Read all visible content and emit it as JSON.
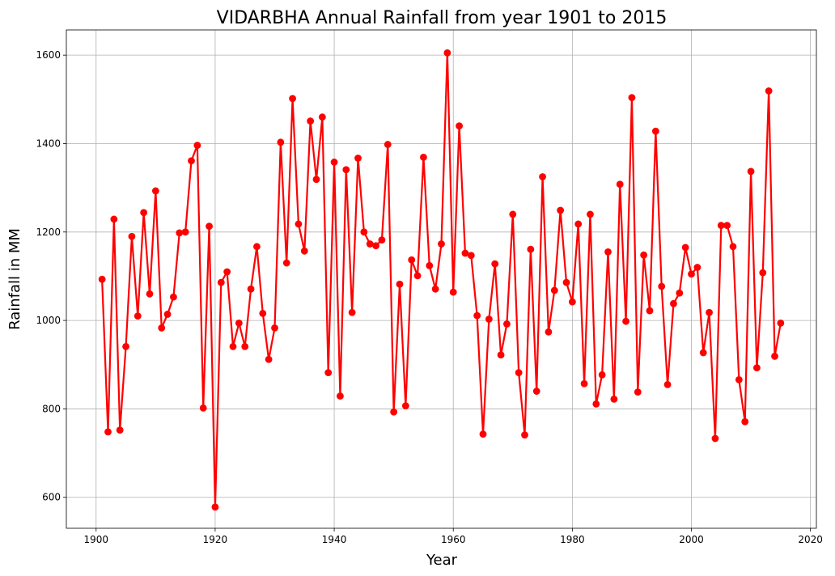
{
  "chart_data": {
    "type": "line",
    "title": "VIDARBHA Annual Rainfall from year 1901 to 2015",
    "xlabel": "Year",
    "ylabel": "Rainfall in MM",
    "xlim": [
      1895,
      2021
    ],
    "ylim": [
      530,
      1657
    ],
    "xticks": [
      1900,
      1920,
      1940,
      1960,
      1980,
      2000,
      2020
    ],
    "yticks": [
      600,
      800,
      1000,
      1200,
      1400,
      1600
    ],
    "grid": true,
    "legend": "none",
    "series": [
      {
        "color": "#ff0000",
        "marker": "circle",
        "x": [
          1901,
          1902,
          1903,
          1904,
          1905,
          1906,
          1907,
          1908,
          1909,
          1910,
          1911,
          1912,
          1913,
          1914,
          1915,
          1916,
          1917,
          1918,
          1919,
          1920,
          1921,
          1922,
          1923,
          1924,
          1925,
          1926,
          1927,
          1928,
          1929,
          1930,
          1931,
          1932,
          1933,
          1934,
          1935,
          1936,
          1937,
          1938,
          1939,
          1940,
          1941,
          1942,
          1943,
          1944,
          1945,
          1946,
          1947,
          1948,
          1949,
          1950,
          1951,
          1952,
          1953,
          1954,
          1955,
          1956,
          1957,
          1958,
          1959,
          1960,
          1961,
          1962,
          1963,
          1964,
          1965,
          1966,
          1967,
          1968,
          1969,
          1970,
          1971,
          1972,
          1973,
          1974,
          1975,
          1976,
          1977,
          1978,
          1979,
          1980,
          1981,
          1982,
          1983,
          1984,
          1985,
          1986,
          1987,
          1988,
          1989,
          1990,
          1991,
          1992,
          1993,
          1994,
          1995,
          1996,
          1997,
          1998,
          1999,
          2000,
          2001,
          2002,
          2003,
          2004,
          2005,
          2006,
          2007,
          2008,
          2009,
          2010,
          2011,
          2012,
          2013,
          2014,
          2015
        ],
        "values": [
          1093,
          748,
          1229,
          752,
          941,
          1190,
          1010,
          1244,
          1060,
          1293,
          983,
          1014,
          1053,
          1198,
          1200,
          1361,
          1396,
          802,
          1213,
          578,
          1086,
          1110,
          941,
          994,
          941,
          1071,
          1167,
          1016,
          912,
          983,
          1403,
          1130,
          1502,
          1218,
          1157,
          1451,
          1319,
          1460,
          882,
          1358,
          829,
          1341,
          1018,
          1367,
          1200,
          1173,
          1169,
          1182,
          1398,
          793,
          1082,
          807,
          1137,
          1101,
          1369,
          1124,
          1071,
          1173,
          1605,
          1064,
          1440,
          1152,
          1147,
          1011,
          743,
          1003,
          1128,
          922,
          992,
          1240,
          882,
          741,
          1161,
          840,
          1325,
          974,
          1068,
          1249,
          1086,
          1042,
          1218,
          857,
          1240,
          811,
          877,
          1155,
          822,
          1308,
          998,
          1504,
          838,
          1148,
          1022,
          1428,
          1077,
          855,
          1038,
          1062,
          1165,
          1105,
          1120,
          927,
          1018,
          733,
          1215,
          1215,
          1167,
          866,
          771,
          1337,
          893,
          1108,
          1519,
          919,
          994
        ]
      }
    ]
  }
}
